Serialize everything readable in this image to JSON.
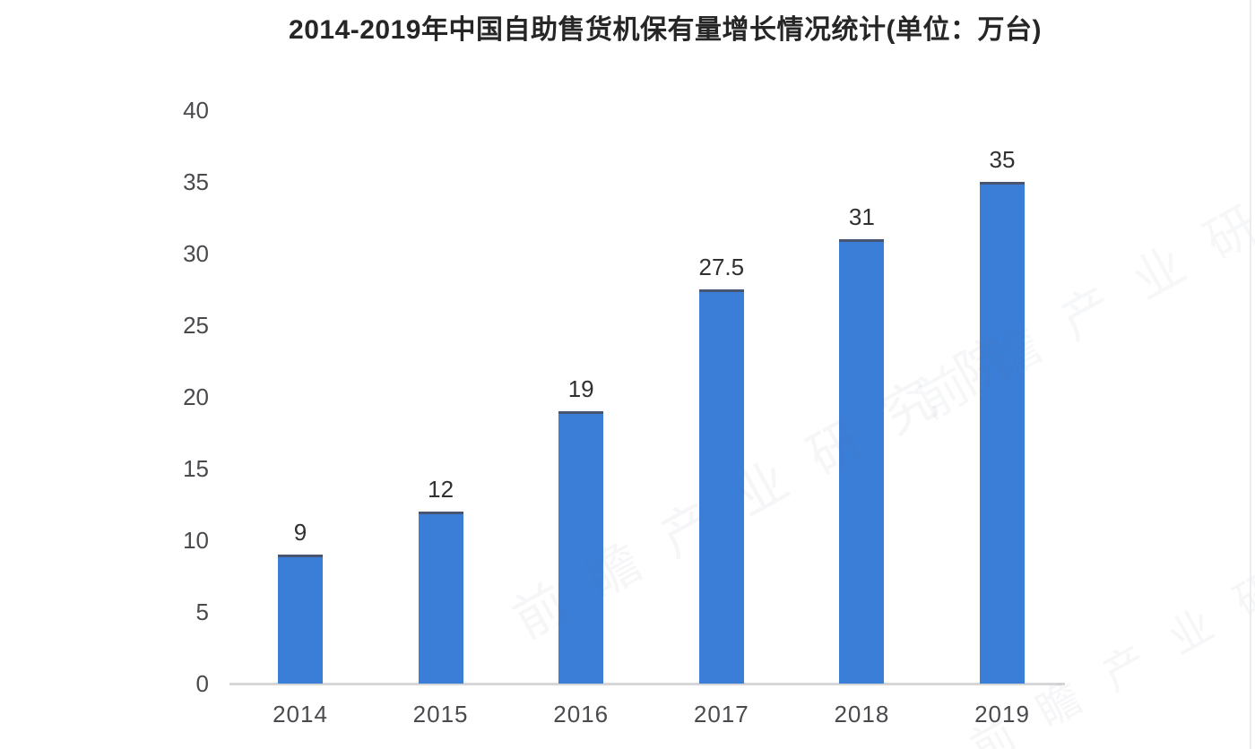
{
  "page": {
    "background": "#ffffff",
    "right_border_color": "#ececef"
  },
  "title": "2014-2019年中国自助售货机保有量增长情况统计(单位：万台)",
  "watermark": {
    "text": "前瞻产业研究院"
  },
  "chart_data": {
    "type": "bar",
    "title": "2014-2019年中国自助售货机保有量增长情况统计(单位：万台)",
    "unit_note": "单位：万台",
    "categories": [
      "2014",
      "2015",
      "2016",
      "2017",
      "2018",
      "2019"
    ],
    "values": [
      9,
      12,
      19,
      27.5,
      31,
      35
    ],
    "value_labels": [
      "9",
      "12",
      "19",
      "27.5",
      "31",
      "35"
    ],
    "xlabel": "",
    "ylabel": "",
    "ylim": [
      0,
      40
    ],
    "yticks": [
      0,
      5,
      10,
      15,
      20,
      25,
      30,
      35,
      40
    ],
    "grid": false,
    "legend": null,
    "bar_color": "#3a7ed8",
    "bar_top_edge_color": "#475572",
    "axis_line_color": "#d6d6d9",
    "tick_label_color": "#4a4a4e",
    "value_label_color": "#303030"
  }
}
